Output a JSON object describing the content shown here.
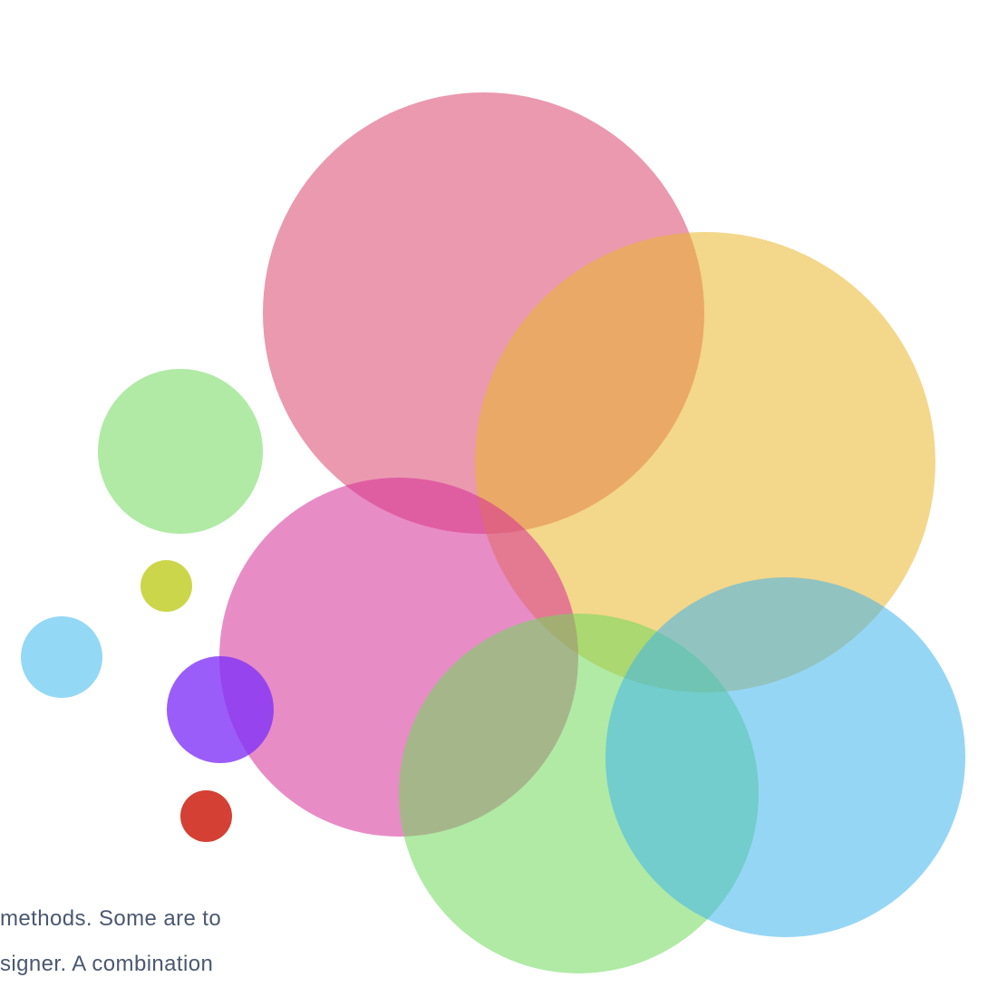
{
  "bubbles": [
    {
      "name": "rose-bubble",
      "color": "#d9466e"
    },
    {
      "name": "gold-bubble",
      "color": "#e9b62c"
    },
    {
      "name": "orchid-bubble",
      "color": "#d62e98"
    },
    {
      "name": "mint-bubble-large",
      "color": "#6fd85b"
    },
    {
      "name": "sky-bubble-large",
      "color": "#3fb5ec"
    },
    {
      "name": "mint-bubble-small",
      "color": "#6fd85b"
    },
    {
      "name": "olive-bubble",
      "color": "#c2cf2c"
    },
    {
      "name": "sky-bubble-small",
      "color": "#6fcbf2"
    },
    {
      "name": "violet-bubble",
      "color": "#7f2ff7"
    },
    {
      "name": "red-bubble",
      "color": "#cc1e10"
    }
  ],
  "text": {
    "line1": "methods. Some are to",
    "line2": "signer. A combination"
  }
}
